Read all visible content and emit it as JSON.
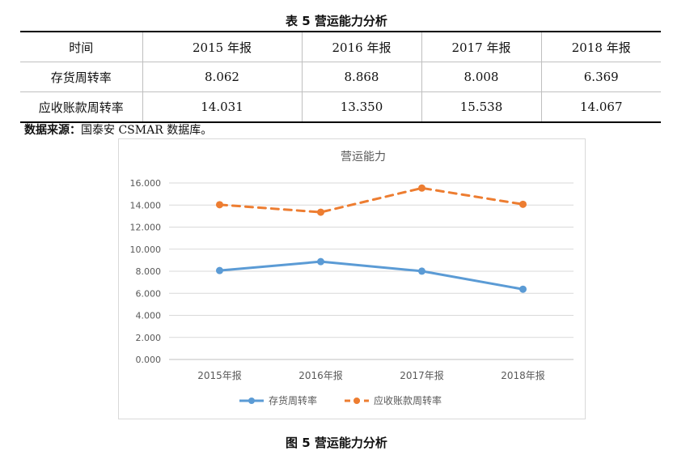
{
  "table": {
    "caption": "表 5  营运能力分析",
    "header": [
      "时间",
      "2015 年报",
      "2016 年报",
      "2017 年报",
      "2018 年报"
    ],
    "rows": [
      [
        "存货周转率",
        "8.062",
        "8.868",
        "8.008",
        "6.369"
      ],
      [
        "应收账款周转率",
        "14.031",
        "13.350",
        "15.538",
        "14.067"
      ]
    ]
  },
  "source_note": {
    "label": "数据来源：",
    "text": "国泰安 CSMAR 数据库。"
  },
  "chart_data": {
    "type": "line",
    "title": "营运能力",
    "categories": [
      "2015年报",
      "2016年报",
      "2017年报",
      "2018年报"
    ],
    "series": [
      {
        "name": "存货周转率",
        "values": [
          8.062,
          8.868,
          8.008,
          6.369
        ],
        "color": "#5b9bd5",
        "dashed": false
      },
      {
        "name": "应收账款周转率",
        "values": [
          14.031,
          13.35,
          15.538,
          14.067
        ],
        "color": "#ed7d31",
        "dashed": true
      }
    ],
    "ylim": [
      0,
      16
    ],
    "yticks": [
      "0.000",
      "2.000",
      "4.000",
      "6.000",
      "8.000",
      "10.000",
      "12.000",
      "14.000",
      "16.000"
    ],
    "grid": true,
    "legend": "bottom"
  },
  "figure_caption": "图 5  营运能力分析"
}
